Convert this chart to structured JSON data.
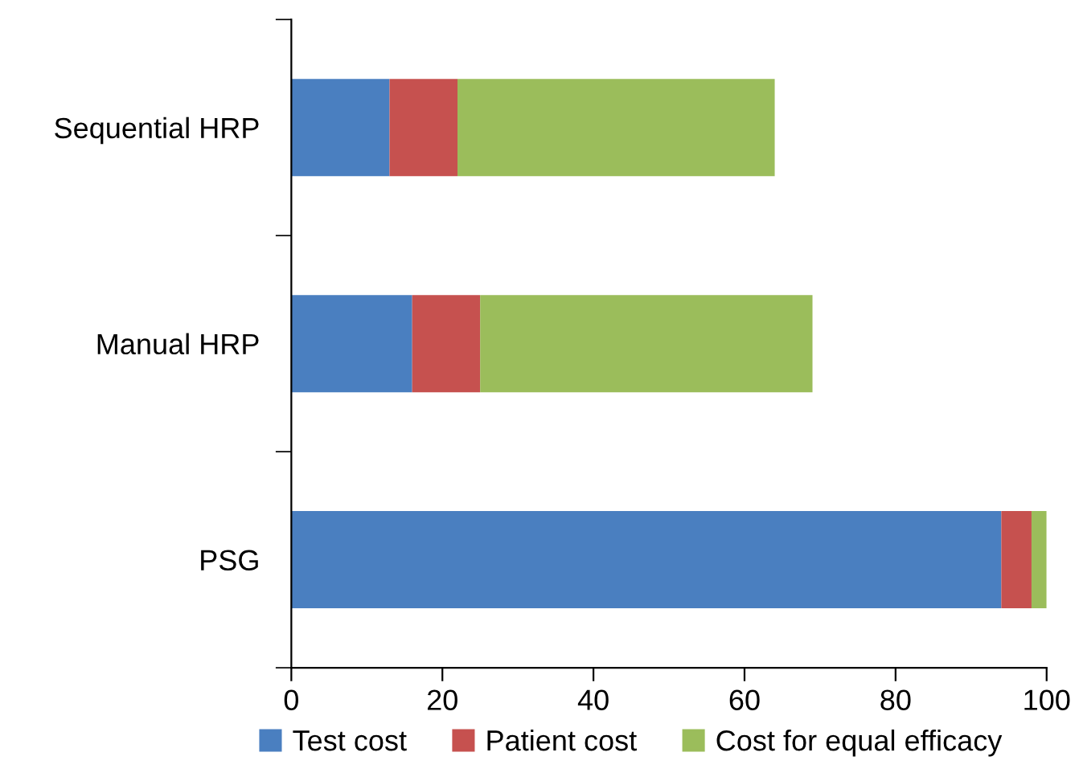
{
  "chart_data": {
    "type": "bar",
    "orientation": "horizontal",
    "stacked": true,
    "categories": [
      "Sequential HRP",
      "Manual HRP",
      "PSG"
    ],
    "series": [
      {
        "name": "Test cost",
        "color": "#4a7fc0",
        "values": [
          13,
          16,
          94
        ]
      },
      {
        "name": "Patient cost",
        "color": "#c6514f",
        "values": [
          9,
          9,
          4
        ]
      },
      {
        "name": "Cost for equal efficacy",
        "color": "#9bbd5b",
        "values": [
          42,
          44,
          2
        ]
      }
    ],
    "xlim": [
      0,
      100
    ],
    "xticks": [
      0,
      20,
      40,
      60,
      80,
      100
    ],
    "grid": false,
    "legend": "bottom"
  }
}
